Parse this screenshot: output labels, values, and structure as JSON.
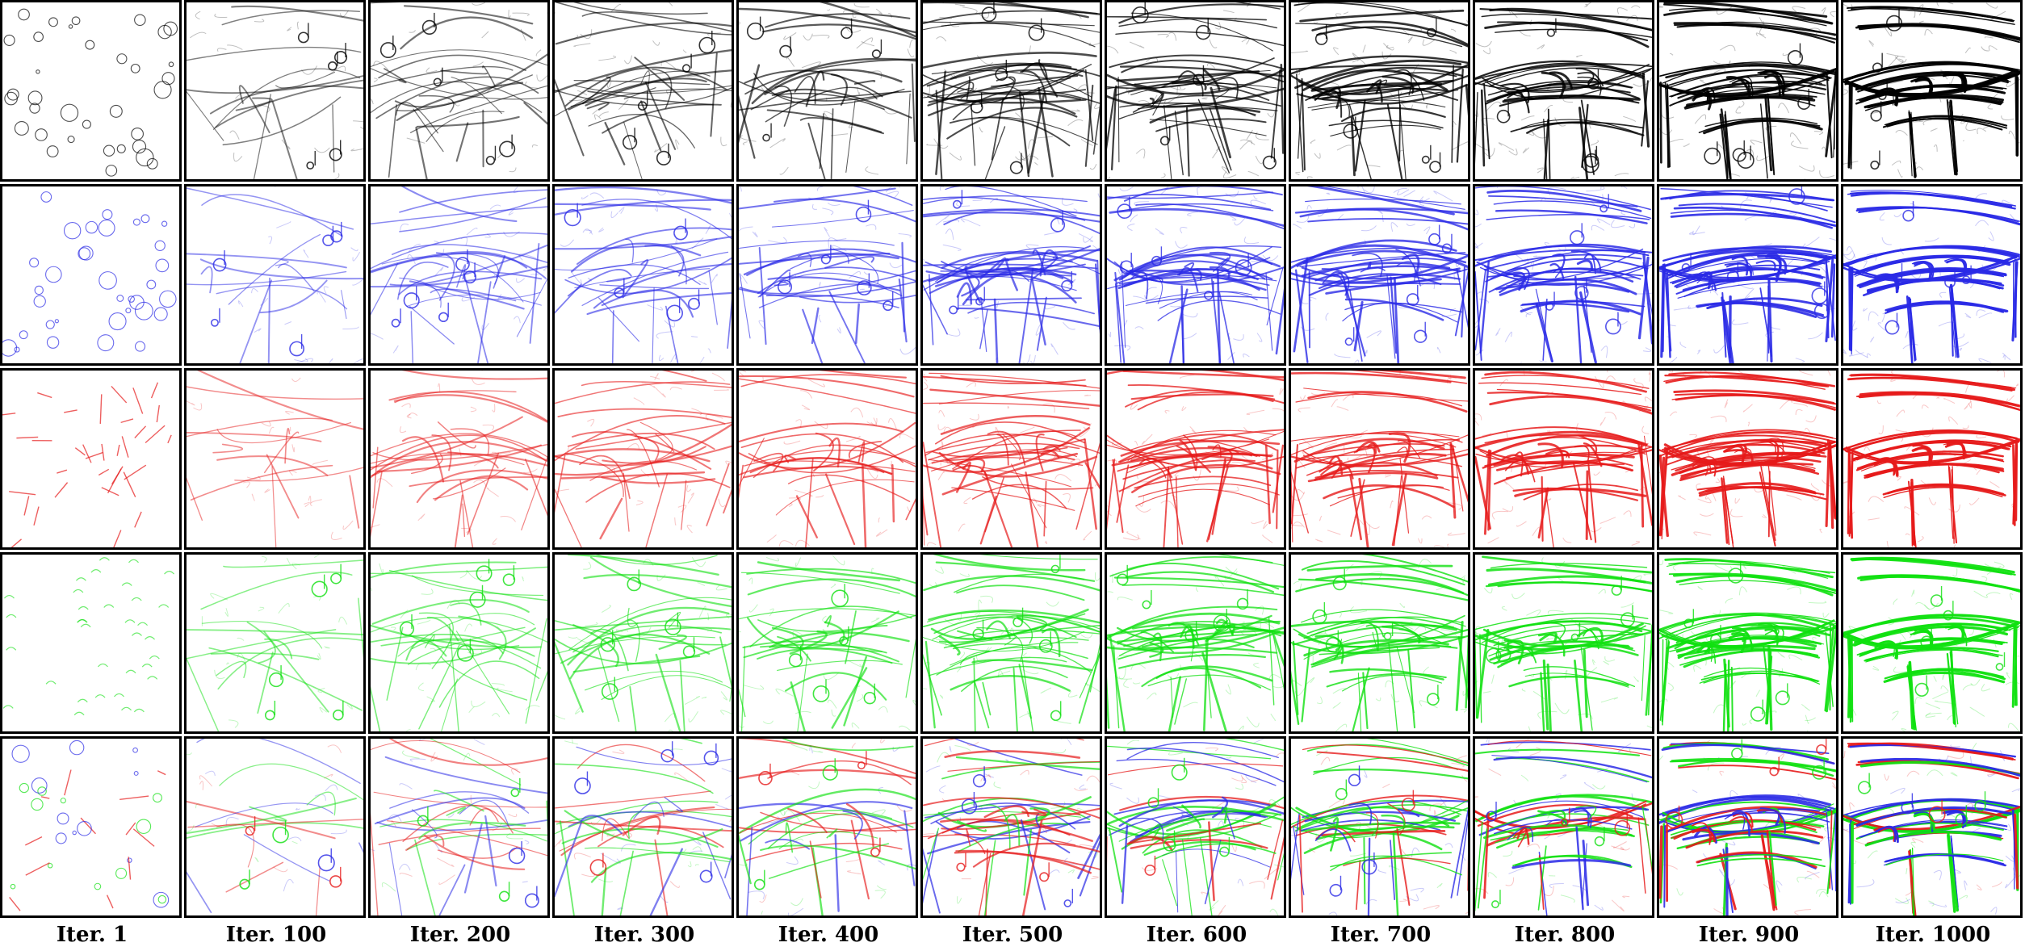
{
  "columns": [
    {
      "label": "Iter. 1"
    },
    {
      "label": "Iter. 100"
    },
    {
      "label": "Iter. 200"
    },
    {
      "label": "Iter. 300"
    },
    {
      "label": "Iter. 400"
    },
    {
      "label": "Iter. 500"
    },
    {
      "label": "Iter. 600"
    },
    {
      "label": "Iter. 700"
    },
    {
      "label": "Iter. 800"
    },
    {
      "label": "Iter. 900"
    },
    {
      "label": "Iter. 1000"
    }
  ],
  "rows": [
    {
      "color": "#000000"
    },
    {
      "color": "#2a2ae6"
    },
    {
      "color": "#e61a1a"
    },
    {
      "color": "#10e010"
    },
    {
      "color": "multi"
    }
  ],
  "panel_subject": "piano-sketch"
}
